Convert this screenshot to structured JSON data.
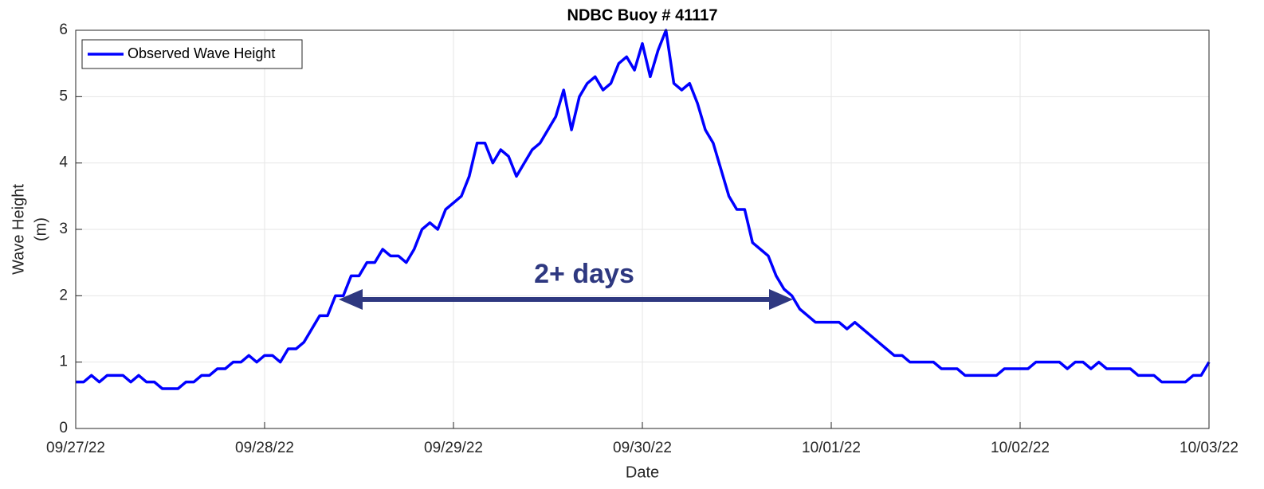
{
  "chart_data": {
    "type": "line",
    "title": "NDBC Buoy # 41117",
    "xlabel": "Date",
    "ylabel": [
      "Wave Height",
      "(m)"
    ],
    "xlim": [
      0,
      144
    ],
    "xticks": [
      {
        "value": 0,
        "label": "09/27/22"
      },
      {
        "value": 24,
        "label": "09/28/22"
      },
      {
        "value": 48,
        "label": "09/29/22"
      },
      {
        "value": 72,
        "label": "09/30/22"
      },
      {
        "value": 96,
        "label": "10/01/22"
      },
      {
        "value": 120,
        "label": "10/02/22"
      },
      {
        "value": 144,
        "label": "10/03/22"
      }
    ],
    "ylim": [
      0,
      6
    ],
    "yticks": [
      0,
      1,
      2,
      3,
      4,
      5,
      6
    ],
    "grid": true,
    "legend": "upper left",
    "annotation": "2+ days",
    "x": [
      0,
      1,
      2,
      3,
      4,
      5,
      6,
      7,
      8,
      9,
      10,
      11,
      12,
      13,
      14,
      15,
      16,
      17,
      18,
      19,
      20,
      21,
      22,
      23,
      24,
      25,
      26,
      27,
      28,
      29,
      30,
      31,
      32,
      33,
      34,
      35,
      36,
      37,
      38,
      39,
      40,
      41,
      42,
      43,
      44,
      45,
      46,
      47,
      48,
      49,
      50,
      51,
      52,
      53,
      54,
      55,
      56,
      57,
      58,
      59,
      60,
      61,
      62,
      63,
      64,
      65,
      66,
      67,
      68,
      69,
      70,
      71,
      72,
      73,
      74,
      75,
      76,
      77,
      78,
      79,
      80,
      81,
      82,
      83,
      84,
      85,
      86,
      87,
      88,
      89,
      90,
      91,
      92,
      93,
      94,
      95,
      96,
      97,
      98,
      99,
      100,
      101,
      102,
      103,
      104,
      105,
      106,
      107,
      108,
      109,
      110,
      111,
      112,
      113,
      114,
      115,
      116,
      117,
      118,
      119,
      120,
      121,
      122,
      123,
      124,
      125,
      126,
      127,
      128,
      129,
      130,
      131,
      132,
      133,
      134,
      135,
      136,
      137,
      138,
      139,
      140,
      141,
      142,
      143,
      144
    ],
    "series": [
      {
        "name": "Observed Wave Height",
        "color": "#0000ff",
        "values": [
          0.7,
          0.7,
          0.8,
          0.7,
          0.8,
          0.8,
          0.8,
          0.7,
          0.8,
          0.7,
          0.7,
          0.6,
          0.6,
          0.6,
          0.7,
          0.7,
          0.8,
          0.8,
          0.9,
          0.9,
          1.0,
          1.0,
          1.1,
          1.0,
          1.1,
          1.1,
          1.0,
          1.2,
          1.2,
          1.3,
          1.5,
          1.7,
          1.7,
          2.0,
          2.0,
          2.3,
          2.3,
          2.5,
          2.5,
          2.7,
          2.6,
          2.6,
          2.5,
          2.7,
          3.0,
          3.1,
          3.0,
          3.3,
          3.4,
          3.5,
          3.8,
          4.3,
          4.3,
          4.0,
          4.2,
          4.1,
          3.8,
          4.0,
          4.2,
          4.3,
          4.5,
          4.7,
          5.1,
          4.5,
          5.0,
          5.2,
          5.3,
          5.1,
          5.2,
          5.5,
          5.6,
          5.4,
          5.8,
          5.3,
          5.7,
          6.0,
          5.2,
          5.1,
          5.2,
          4.9,
          4.5,
          4.3,
          3.9,
          3.5,
          3.3,
          3.3,
          2.8,
          2.7,
          2.6,
          2.3,
          2.1,
          2.0,
          1.8,
          1.7,
          1.6,
          1.6,
          1.6,
          1.6,
          1.5,
          1.6,
          1.5,
          1.4,
          1.3,
          1.2,
          1.1,
          1.1,
          1.0,
          1.0,
          1.0,
          1.0,
          0.9,
          0.9,
          0.9,
          0.8,
          0.8,
          0.8,
          0.8,
          0.8,
          0.9,
          0.9,
          0.9,
          0.9,
          1.0,
          1.0,
          1.0,
          1.0,
          0.9,
          1.0,
          1.0,
          0.9,
          1.0,
          0.9,
          0.9,
          0.9,
          0.9,
          0.8,
          0.8,
          0.8,
          0.7,
          0.7,
          0.7,
          0.7,
          0.8,
          0.8,
          1.0
        ]
      }
    ]
  }
}
